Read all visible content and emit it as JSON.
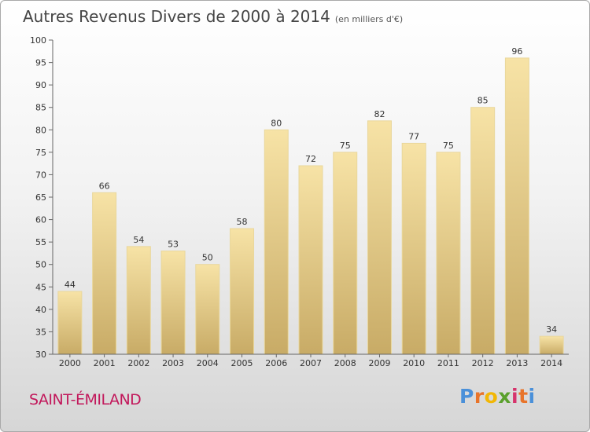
{
  "title": "Autres Revenus Divers de 2000 à 2014",
  "unit_label": "(en milliers d'€)",
  "commune": "SAINT-ÉMILAND",
  "logo": {
    "letters": [
      "P",
      "r",
      "o",
      "x",
      "i",
      "t",
      "i"
    ],
    "colors": [
      "#4a90d9",
      "#e8742a",
      "#f2b705",
      "#5aa02c",
      "#d6336c",
      "#e8742a",
      "#4a90d9"
    ]
  },
  "chart_data": {
    "type": "bar",
    "categories": [
      "2000",
      "2001",
      "2002",
      "2003",
      "2004",
      "2005",
      "2006",
      "2007",
      "2008",
      "2009",
      "2010",
      "2011",
      "2012",
      "2013",
      "2014"
    ],
    "values": [
      44,
      66,
      54,
      53,
      50,
      58,
      80,
      72,
      75,
      82,
      77,
      75,
      85,
      96,
      34
    ],
    "ylim": [
      30,
      100
    ],
    "yticks": [
      30,
      35,
      40,
      45,
      50,
      55,
      60,
      65,
      70,
      75,
      80,
      85,
      90,
      95,
      100
    ],
    "grid": false,
    "bar_color_top": "#f7e3a6",
    "bar_color_bottom": "#c8ab66"
  }
}
